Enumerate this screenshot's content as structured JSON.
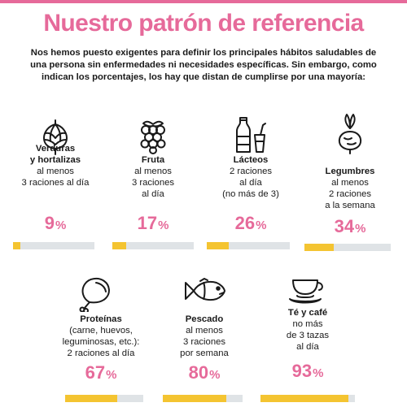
{
  "header": {
    "title": "Nuestro patrón de referencia",
    "intro": "Nos hemos puesto exigentes para definir los principales hábitos saludables de una persona sin enfermedades ni necesidades específicas. Sin embargo, como indican los porcentajes, los hay que distan de cumplirse por una mayoría:"
  },
  "colors": {
    "accent": "#e66a9a",
    "bar_fill": "#f4c431",
    "bar_track": "#dfe3e6"
  },
  "items": [
    {
      "icon": "artichoke-icon",
      "name": "Verduras\ny hortalizas",
      "desc": "al menos\n3 raciones al día",
      "value": "9",
      "unit": "%",
      "fraction": 0.09
    },
    {
      "icon": "berries-icon",
      "name": "Fruta",
      "desc": "al menos\n3 raciones\nal día",
      "value": "17",
      "unit": "%",
      "fraction": 0.17
    },
    {
      "icon": "milk-bottle-icon",
      "name": "Lácteos",
      "desc": "2 raciones\nal día\n(no más de 3)",
      "value": "26",
      "unit": "%",
      "fraction": 0.26
    },
    {
      "icon": "beetroot-icon",
      "name": "Legumbres",
      "desc": "al menos\n2 raciones\na la semana",
      "value": "34",
      "unit": "%",
      "fraction": 0.34
    },
    {
      "icon": "chicken-leg-icon",
      "name": "Proteínas",
      "desc": "(carne, huevos,\nleguminosas, etc.):\n2 raciones al día",
      "value": "67",
      "unit": "%",
      "fraction": 0.67
    },
    {
      "icon": "fish-icon",
      "name": "Pescado",
      "desc": "al menos\n3 raciones\npor semana",
      "value": "80",
      "unit": "%",
      "fraction": 0.8
    },
    {
      "icon": "tea-cup-icon",
      "name": "Té y café",
      "desc": "no más\nde 3 tazas\nal día",
      "value": "93",
      "unit": "%",
      "fraction": 0.93
    }
  ]
}
